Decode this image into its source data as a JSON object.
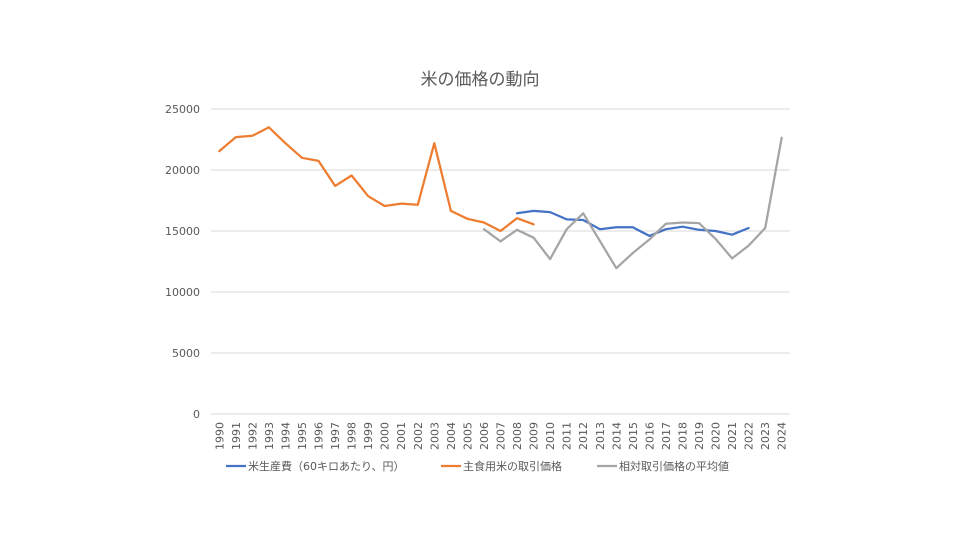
{
  "chart_data": {
    "type": "line",
    "title": "米の価格の動向",
    "xlabel": "",
    "ylabel": "",
    "ylim": [
      0,
      25000
    ],
    "yticks": [
      0,
      5000,
      10000,
      15000,
      20000,
      25000
    ],
    "grid": true,
    "legend_position": "bottom",
    "categories": [
      "1990",
      "1991",
      "1992",
      "1993",
      "1994",
      "1995",
      "1996",
      "1997",
      "1998",
      "1999",
      "2000",
      "2001",
      "2002",
      "2003",
      "2004",
      "2005",
      "2006",
      "2007",
      "2008",
      "2009",
      "2010",
      "2011",
      "2012",
      "2013",
      "2014",
      "2015",
      "2016",
      "2017",
      "2018",
      "2019",
      "2020",
      "2021",
      "2022",
      "2023",
      "2024"
    ],
    "series": [
      {
        "name": "米生産費（60キロあたり、円）",
        "color": "#4472c4",
        "values": [
          null,
          null,
          null,
          null,
          null,
          null,
          null,
          null,
          null,
          null,
          null,
          null,
          null,
          null,
          null,
          null,
          null,
          null,
          16450,
          16650,
          16550,
          15950,
          15900,
          15150,
          15300,
          15300,
          14600,
          15150,
          15350,
          15100,
          15000,
          14700,
          15250,
          null,
          null
        ]
      },
      {
        "name": "主食用米の取引価格",
        "color": "#ed7d31",
        "values": [
          21550,
          22700,
          22800,
          23500,
          22200,
          21000,
          20750,
          18700,
          19550,
          17850,
          17050,
          17250,
          17150,
          22200,
          16650,
          16000,
          15700,
          15000,
          16050,
          15550,
          null,
          null,
          null,
          null,
          null,
          null,
          null,
          null,
          null,
          null,
          null,
          null,
          null,
          null,
          null
        ]
      },
      {
        "name": "相対取引価格の平均値",
        "color": "#a5a5a5",
        "values": [
          null,
          null,
          null,
          null,
          null,
          null,
          null,
          null,
          null,
          null,
          null,
          null,
          null,
          null,
          null,
          null,
          15150,
          14150,
          15100,
          14450,
          12700,
          15150,
          16450,
          14200,
          11950,
          13200,
          14300,
          15600,
          15700,
          15650,
          14350,
          12750,
          13800,
          15250,
          22650
        ]
      }
    ]
  }
}
